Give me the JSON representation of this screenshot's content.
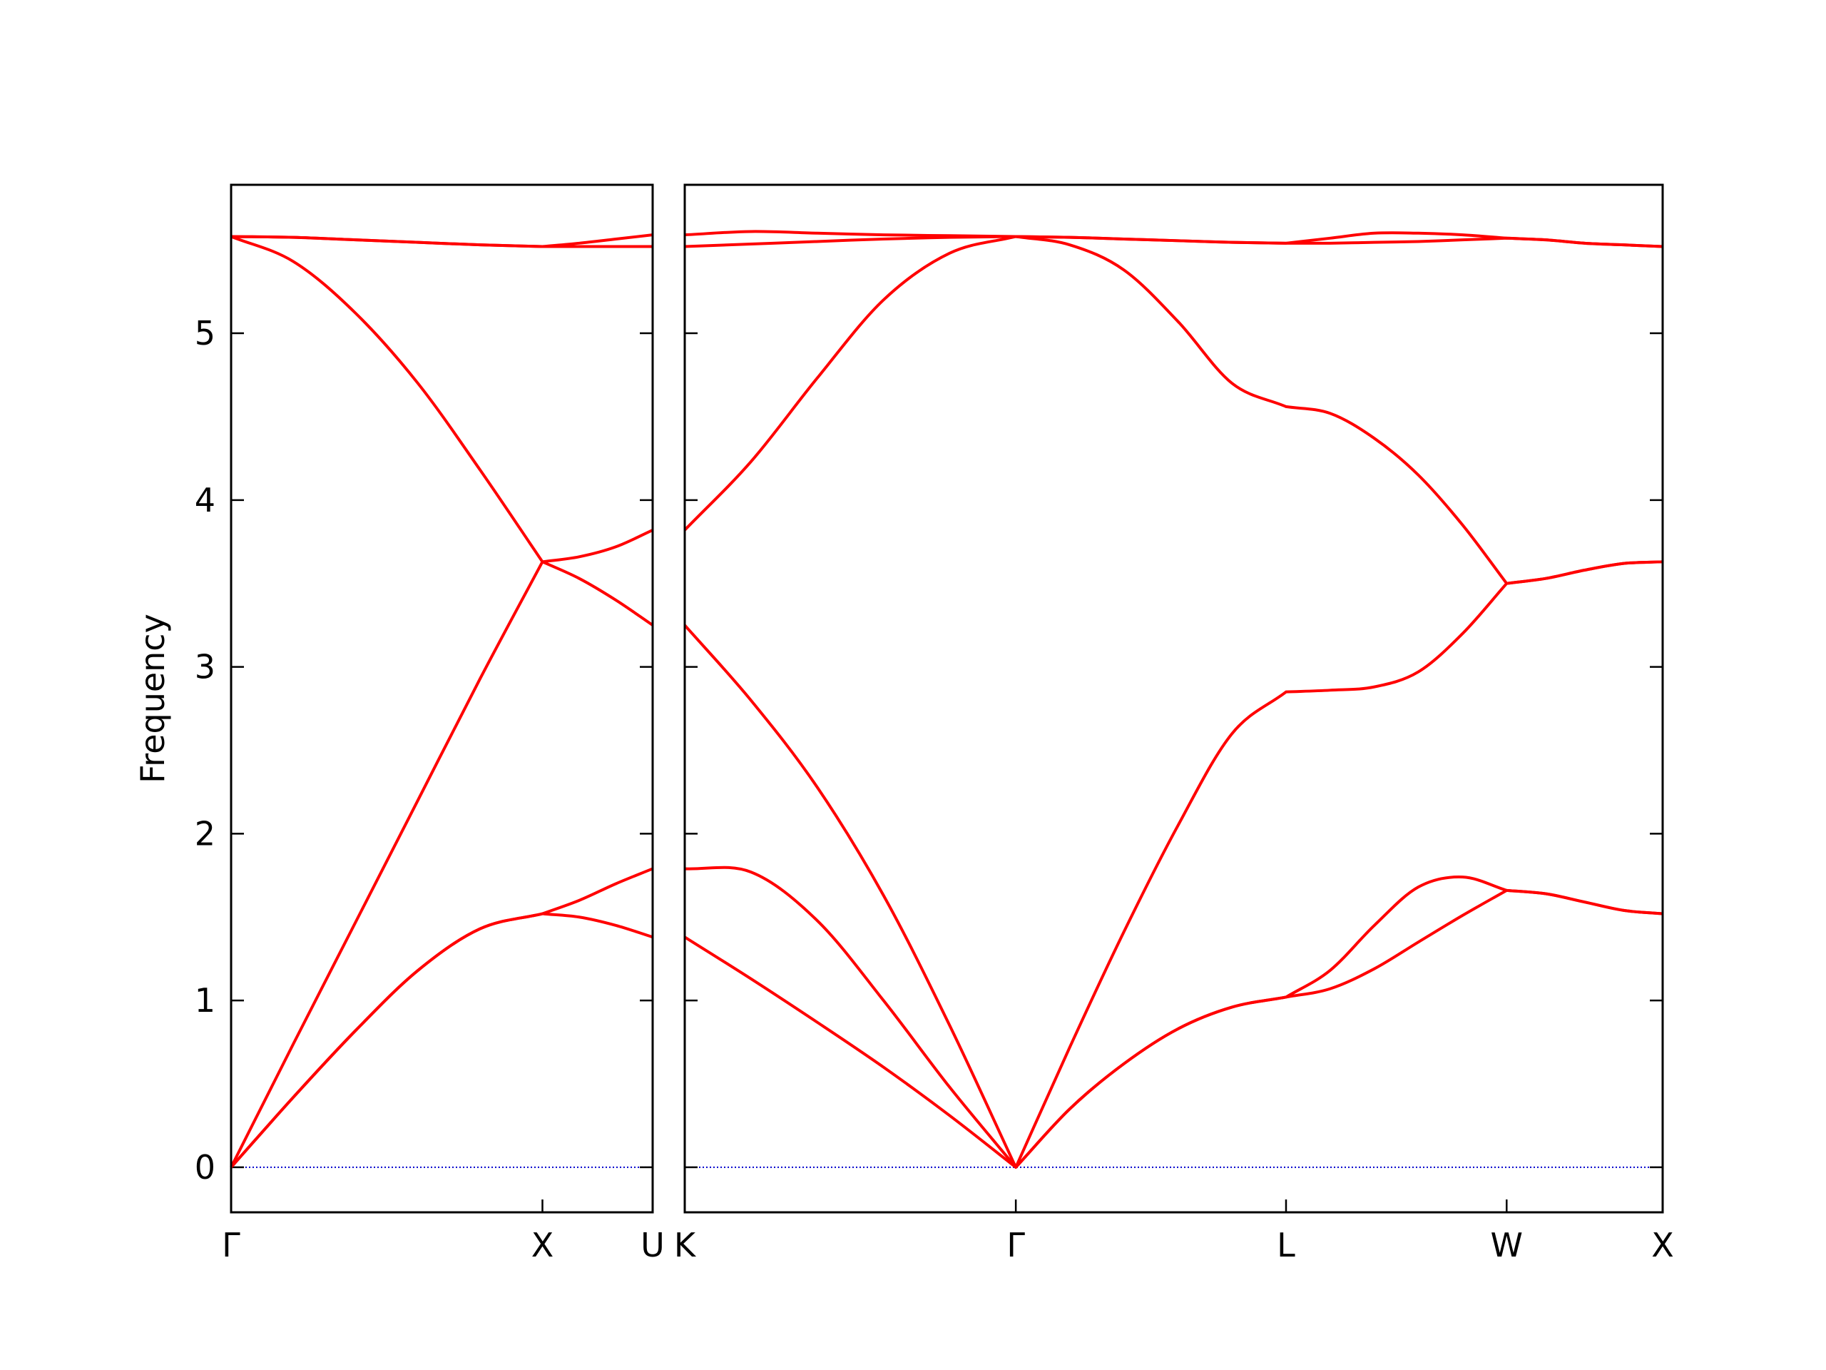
{
  "chart_data": [
    {
      "type": "line",
      "ylabel": "Frequency",
      "color": "#ff0000",
      "hline": 0,
      "hline_color": "#0000cc",
      "xlim": [
        0,
        1.354
      ],
      "ylim": [
        -0.27,
        5.89
      ],
      "xticks": [
        {
          "value": 0,
          "label": "Γ"
        },
        {
          "value": 1,
          "label": "X"
        },
        {
          "value": 1.354,
          "label": "U"
        }
      ],
      "yticks": [
        0,
        1,
        2,
        3,
        4,
        5
      ],
      "x": [
        0,
        0.2,
        0.4,
        0.6,
        0.8,
        1,
        1.118,
        1.236,
        1.354
      ],
      "series": [
        {
          "values": [
            0,
            0.42,
            0.82,
            1.18,
            1.43,
            1.52,
            1.5,
            1.45,
            1.38
          ]
        },
        {
          "values": [
            0,
            0.42,
            0.82,
            1.18,
            1.43,
            1.52,
            1.6,
            1.7,
            1.79
          ]
        },
        {
          "values": [
            0,
            0.74,
            1.47,
            2.2,
            2.93,
            3.63,
            3.53,
            3.4,
            3.25
          ]
        },
        {
          "values": [
            5.58,
            5.43,
            5.12,
            4.7,
            4.18,
            3.63,
            3.66,
            3.72,
            3.82
          ]
        },
        {
          "values": [
            5.58,
            5.575,
            5.56,
            5.545,
            5.53,
            5.52,
            5.52,
            5.52,
            5.52
          ]
        },
        {
          "values": [
            5.58,
            5.575,
            5.56,
            5.545,
            5.53,
            5.52,
            5.54,
            5.565,
            5.59
          ]
        }
      ]
    },
    {
      "type": "line",
      "color": "#ff0000",
      "hline": 0,
      "hline_color": "#0000cc",
      "xlim": [
        1.354,
        4.488
      ],
      "ylim": [
        -0.27,
        5.89
      ],
      "xticks": [
        {
          "value": 1.354,
          "label": "K"
        },
        {
          "value": 2.415,
          "label": "Γ"
        },
        {
          "value": 3.281,
          "label": "L"
        },
        {
          "value": 3.988,
          "label": "W"
        },
        {
          "value": 4.488,
          "label": "X"
        }
      ],
      "yticks": [
        0,
        1,
        2,
        3,
        4,
        5
      ],
      "x": [
        1.354,
        1.566,
        1.778,
        1.991,
        2.203,
        2.415,
        2.588,
        2.761,
        2.935,
        3.108,
        3.281,
        3.422,
        3.564,
        3.705,
        3.847,
        3.988,
        4.113,
        4.238,
        4.363,
        4.488
      ],
      "series": [
        {
          "values": [
            1.38,
            1.13,
            0.87,
            0.6,
            0.31,
            0,
            0.35,
            0.62,
            0.83,
            0.96,
            1.02,
            1.07,
            1.19,
            1.35,
            1.51,
            1.66,
            1.64,
            1.59,
            1.54,
            1.52
          ]
        },
        {
          "values": [
            1.79,
            1.77,
            1.48,
            1.0,
            0.48,
            0,
            0.35,
            0.62,
            0.83,
            0.96,
            1.02,
            1.18,
            1.45,
            1.68,
            1.74,
            1.66,
            1.64,
            1.59,
            1.54,
            1.52
          ]
        },
        {
          "values": [
            3.25,
            2.8,
            2.28,
            1.63,
            0.85,
            0,
            0.72,
            1.41,
            2.05,
            2.6,
            2.85,
            2.86,
            2.88,
            2.97,
            3.2,
            3.5,
            3.53,
            3.58,
            3.62,
            3.63
          ]
        },
        {
          "values": [
            3.82,
            4.23,
            4.73,
            5.2,
            5.48,
            5.58,
            5.53,
            5.38,
            5.07,
            4.7,
            4.56,
            4.52,
            4.37,
            4.15,
            3.85,
            3.5,
            3.53,
            3.58,
            3.62,
            3.63
          ]
        },
        {
          "values": [
            5.52,
            5.535,
            5.55,
            5.565,
            5.575,
            5.58,
            5.575,
            5.565,
            5.555,
            5.545,
            5.54,
            5.54,
            5.545,
            5.55,
            5.56,
            5.57,
            5.56,
            5.54,
            5.53,
            5.52
          ]
        },
        {
          "values": [
            5.59,
            5.61,
            5.6,
            5.59,
            5.585,
            5.58,
            5.575,
            5.565,
            5.555,
            5.545,
            5.54,
            5.57,
            5.6,
            5.6,
            5.59,
            5.57,
            5.56,
            5.54,
            5.53,
            5.52
          ]
        }
      ]
    }
  ]
}
